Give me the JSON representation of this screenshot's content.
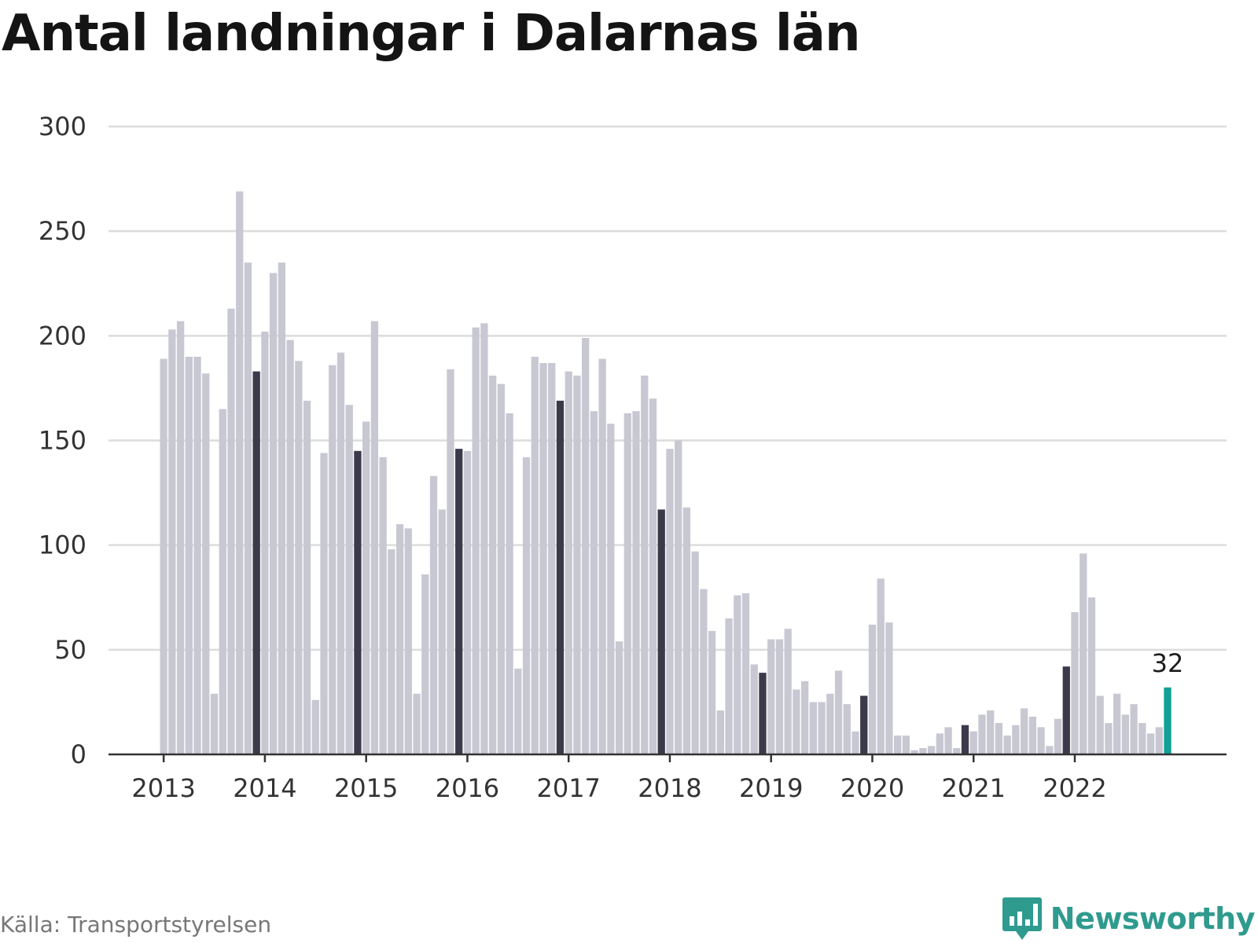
{
  "title": "Antal landningar i Dalarnas län",
  "source": "Källa: Transportstyrelsen",
  "brand": {
    "name": "Newsworthy",
    "icon": "newsworthy-logo-icon"
  },
  "colors": {
    "bar": "#c8c8d3",
    "highlight": "#3c3a4a",
    "latest": "#11a196",
    "grid": "#dcdcdc",
    "axis": "#333333",
    "brand": "#2f9a8e"
  },
  "chart_data": {
    "type": "bar",
    "title": "Antal landningar i Dalarnas län",
    "xlabel": "",
    "ylabel": "",
    "ylim": [
      0,
      300
    ],
    "yticks": [
      "0",
      "50",
      "100",
      "150",
      "200",
      "250",
      "300"
    ],
    "xticks": [
      "2013",
      "2014",
      "2015",
      "2016",
      "2017",
      "2018",
      "2019",
      "2020",
      "2021",
      "2022"
    ],
    "grid": true,
    "start": "2013-01",
    "frequency": "monthly",
    "values": [
      189,
      203,
      207,
      190,
      190,
      182,
      29,
      165,
      213,
      269,
      235,
      183,
      202,
      230,
      235,
      198,
      188,
      169,
      26,
      144,
      186,
      192,
      167,
      145,
      159,
      207,
      142,
      98,
      110,
      108,
      29,
      86,
      133,
      117,
      184,
      146,
      145,
      204,
      206,
      181,
      177,
      163,
      41,
      142,
      190,
      187,
      187,
      169,
      183,
      181,
      199,
      164,
      189,
      158,
      54,
      163,
      164,
      181,
      170,
      117,
      146,
      150,
      118,
      97,
      79,
      59,
      21,
      65,
      76,
      77,
      43,
      39,
      55,
      55,
      60,
      31,
      35,
      25,
      25,
      29,
      40,
      24,
      11,
      28,
      62,
      84,
      63,
      9,
      9,
      2,
      3,
      4,
      10,
      13,
      3,
      14,
      11,
      19,
      21,
      15,
      9,
      14,
      22,
      18,
      13,
      4,
      17,
      42,
      68,
      96,
      75,
      28,
      15,
      29,
      19,
      24,
      15,
      10,
      13,
      32
    ],
    "highlighted": "december",
    "annotation": {
      "label": "32",
      "target": "last"
    }
  }
}
